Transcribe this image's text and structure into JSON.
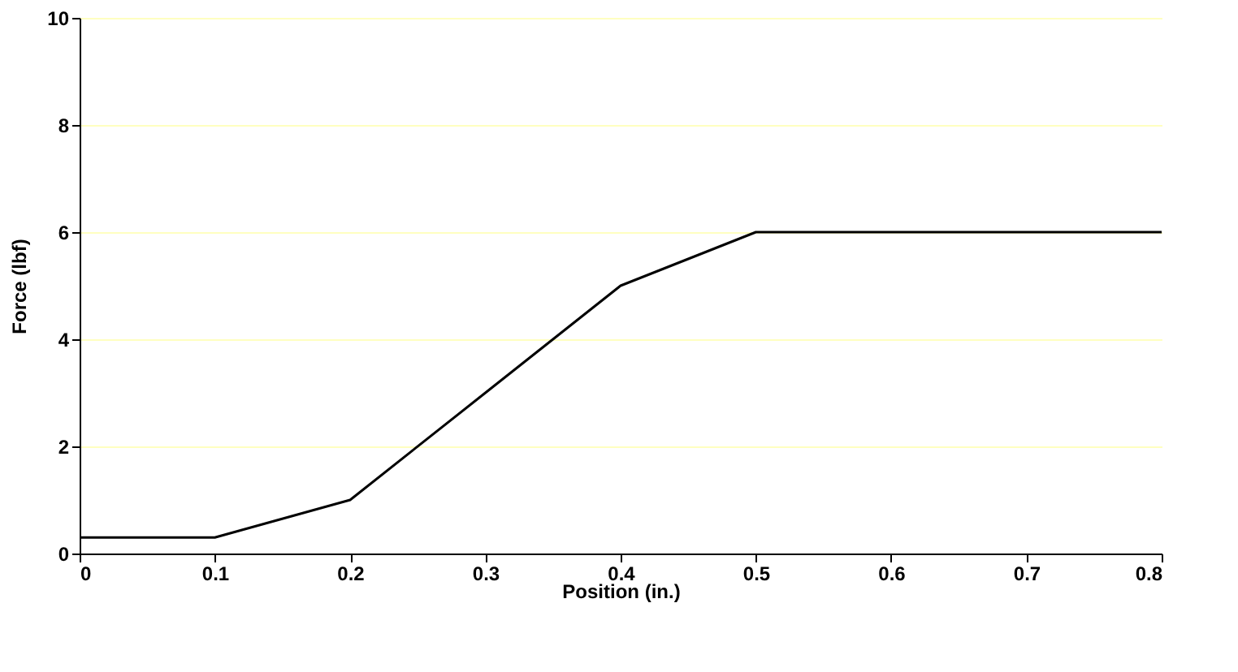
{
  "chart_data": {
    "type": "line",
    "xlabel": "Position (in.)",
    "ylabel": "Force (lbf)",
    "x": [
      0,
      0.1,
      0.2,
      0.3,
      0.4,
      0.5,
      0.6,
      0.7,
      0.8
    ],
    "series": [
      {
        "color": "#000000",
        "values": [
          0.3,
          0.3,
          1,
          3,
          5,
          6,
          6,
          6,
          6
        ]
      }
    ],
    "xlim": [
      0,
      0.8
    ],
    "xticks": [
      0,
      0.1,
      0.2,
      0.3,
      0.4,
      0.5,
      0.6,
      0.7,
      0.8
    ],
    "ylim": [
      0,
      10
    ],
    "yticks": [
      0,
      2,
      4,
      6,
      8,
      10
    ],
    "grid": "y",
    "marker": "none",
    "line_style": "solid"
  }
}
